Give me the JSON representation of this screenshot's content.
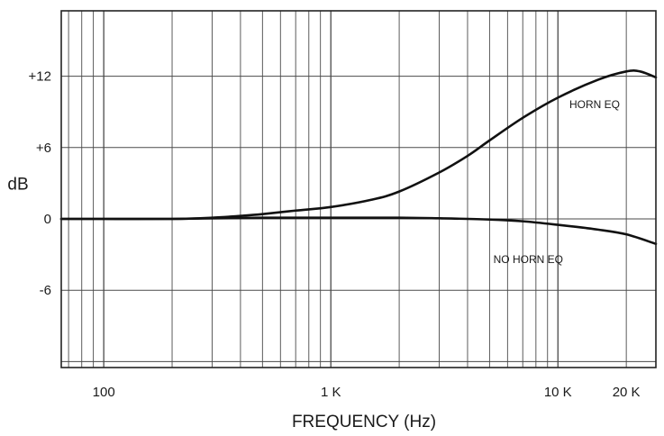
{
  "chart_data": {
    "type": "line",
    "xscale": "log",
    "xlim": [
      65,
      27000
    ],
    "ylim": [
      -12.5,
      17.5
    ],
    "grid": true,
    "xlabel": "FREQUENCY (Hz)",
    "ylabel": "dB",
    "x_ticks": [
      {
        "value": 100,
        "label": "100"
      },
      {
        "value": 1000,
        "label": "1 K"
      },
      {
        "value": 10000,
        "label": "10 K"
      },
      {
        "value": 20000,
        "label": "20 K"
      }
    ],
    "y_ticks": [
      {
        "value": 12,
        "label": "+12"
      },
      {
        "value": 6,
        "label": "+6"
      },
      {
        "value": 0,
        "label": "0"
      },
      {
        "value": -6,
        "label": "-6"
      }
    ],
    "series": [
      {
        "name": "HORN EQ",
        "x": [
          65,
          100,
          200,
          300,
          400,
          500,
          700,
          1000,
          1500,
          2000,
          3000,
          4000,
          5000,
          7000,
          10000,
          15000,
          20000,
          23000,
          27000
        ],
        "y": [
          0,
          0,
          0,
          0.1,
          0.25,
          0.4,
          0.7,
          1.0,
          1.6,
          2.3,
          3.9,
          5.3,
          6.6,
          8.5,
          10.2,
          11.7,
          12.4,
          12.4,
          11.9
        ]
      },
      {
        "name": "NO HORN EQ",
        "x": [
          65,
          100,
          200,
          500,
          1000,
          2000,
          3000,
          5000,
          7000,
          10000,
          15000,
          20000,
          27000
        ],
        "y": [
          0,
          0,
          0,
          0.1,
          0.1,
          0.1,
          0.05,
          -0.05,
          -0.2,
          -0.5,
          -0.9,
          -1.3,
          -2.1
        ]
      }
    ],
    "annotations": [
      {
        "text": "HORN EQ",
        "x": 14500,
        "y": 9.3
      },
      {
        "text": "NO HORN EQ",
        "x": 7400,
        "y": -3.7
      }
    ]
  }
}
